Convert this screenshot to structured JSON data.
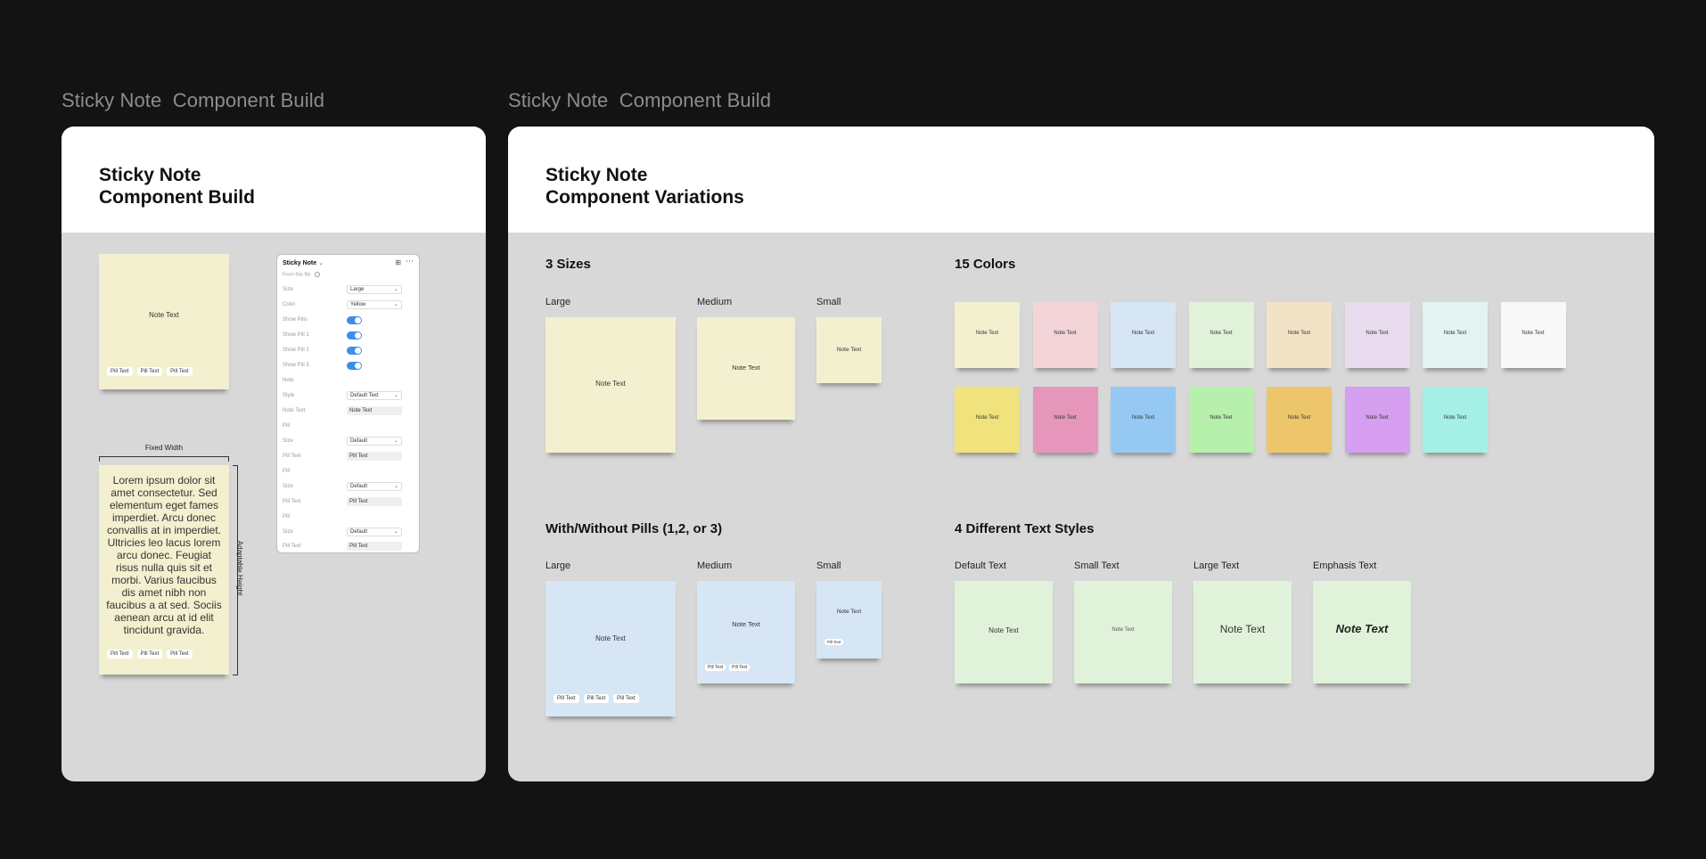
{
  "frames": {
    "left_label": "Sticky Note  Component Build",
    "right_label": "Sticky Note  Component Build"
  },
  "build_card": {
    "title_line1": "Sticky Note",
    "title_line2": "Component Build",
    "note_text": "Note Text",
    "pill_text": "Pill Text",
    "fixed_width_label": "Fixed Width",
    "adaptable_height_label": "Adaptable Height",
    "lorem": "Lorem ipsum dolor sit amet consectetur. Sed elementum eget fames imperdiet. Arcu donec convallis at in imperdiet. Ultricies leo lacus lorem arcu donec. Feugiat risus nulla quis sit et morbi. Varius faucibus dis amet nibh non faucibus a at sed. Sociis aenean arcu at id elit tincidunt gravida.",
    "panel": {
      "title": "Sticky Note",
      "from_file": "From this file",
      "size_label": "Size",
      "size_value": "Large",
      "color_label": "Color",
      "color_value": "Yellow",
      "show_pills": "Show Pills",
      "show_pill1": "Show Pill 1",
      "show_pill2": "Show Pill 2",
      "show_pill3": "Show Pill 3",
      "note_section": "Note",
      "style_label": "Style",
      "style_value": "Default Text",
      "note_text_label": "Note Text",
      "note_text_value": "Note Text",
      "pill_section": "Pill",
      "pill_size_label": "Size",
      "pill_size_value": "Default",
      "pill_text_label": "Pill Text",
      "pill_text_value": "Pill Text"
    }
  },
  "variations_card": {
    "title_line1": "Sticky Note",
    "title_line2": "Component Variations",
    "sizes_title": "3 Sizes",
    "colors_title": "15 Colors",
    "pills_title": "With/Without Pills (1,2, or 3)",
    "styles_title": "4 Different Text Styles",
    "large": "Large",
    "medium": "Medium",
    "small": "Small",
    "note_text": "Note Text",
    "pill_text": "Pill Text",
    "style_labels": [
      "Default Text",
      "Small Text",
      "Large Text",
      "Emphasis Text"
    ],
    "colors_row1": [
      "#f3f0cf",
      "#f3d4d8",
      "#d6e6f4",
      "#e0f3da",
      "#f3e3c6",
      "#e9dcef",
      "#e2f3f0",
      "#f8f8f8"
    ],
    "colors_row2": [
      "#f0e27c",
      "#e796bb",
      "#95c9f3",
      "#b7efad",
      "#edc56b",
      "#d69ff0",
      "#a4efe6"
    ]
  }
}
